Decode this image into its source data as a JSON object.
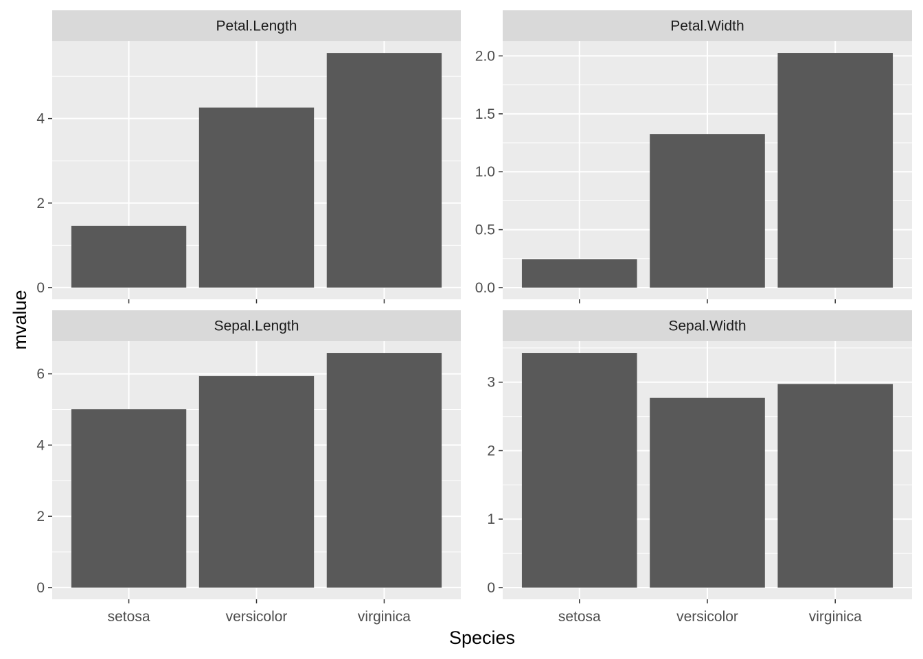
{
  "chart_data": {
    "type": "bar",
    "facet_layout": "2x2",
    "xlabel": "Species",
    "ylabel": "mvalue",
    "categories": [
      "setosa",
      "versicolor",
      "virginica"
    ],
    "colors": {
      "panel_bg": "#ebebeb",
      "strip_bg": "#d9d9d9",
      "bar_fill": "#595959",
      "grid": "#ffffff",
      "tick": "#333333"
    },
    "panels": [
      {
        "title": "Petal.Length",
        "values": [
          1.462,
          4.26,
          5.552
        ],
        "ylim": [
          -0.278,
          5.83
        ],
        "yticks": [
          0,
          2,
          4
        ],
        "ytick_labels": [
          "0",
          "2",
          "4"
        ]
      },
      {
        "title": "Petal.Width",
        "values": [
          0.246,
          1.326,
          2.026
        ],
        "ylim": [
          -0.101,
          2.127
        ],
        "yticks": [
          0,
          0.5,
          1,
          1.5,
          2
        ],
        "ytick_labels": [
          "0.0",
          "0.5",
          "1.0",
          "1.5",
          "2.0"
        ]
      },
      {
        "title": "Sepal.Length",
        "values": [
          5.006,
          5.936,
          6.588
        ],
        "ylim": [
          -0.329,
          6.917
        ],
        "yticks": [
          0,
          2,
          4,
          6
        ],
        "ytick_labels": [
          "0",
          "2",
          "4",
          "6"
        ]
      },
      {
        "title": "Sepal.Width",
        "values": [
          3.428,
          2.77,
          2.974
        ],
        "ylim": [
          -0.171,
          3.599
        ],
        "yticks": [
          0,
          1,
          2,
          3
        ],
        "ytick_labels": [
          "0",
          "1",
          "2",
          "3"
        ]
      }
    ]
  }
}
